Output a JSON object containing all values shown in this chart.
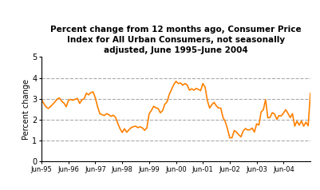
{
  "title": "Percent change from 12 months ago, Consumer Price\nIndex for All Urban Consumers, not seasonally\nadjusted, June 1995–June 2004",
  "ylabel": "Percent change",
  "line_color": "#FF8000",
  "bg_color": "#ffffff",
  "plot_bg_color": "#ffffff",
  "grid_color": "#aaaaaa",
  "ylim": [
    0,
    5
  ],
  "yticks": [
    0,
    1,
    2,
    3,
    4,
    5
  ],
  "xtick_labels": [
    "Jun-95",
    "Jun-96",
    "Jun-97",
    "Jun-98",
    "Jun-99",
    "Jun-00",
    "Jun-01",
    "Jun-02",
    "Jun-03",
    "Jun-04"
  ],
  "values": [
    2.96,
    2.77,
    2.61,
    2.54,
    2.63,
    2.74,
    2.86,
    2.99,
    3.04,
    2.88,
    2.79,
    2.62,
    2.93,
    2.97,
    2.93,
    2.98,
    3.02,
    2.78,
    2.95,
    3.01,
    3.27,
    3.19,
    3.3,
    3.33,
    3.04,
    2.62,
    2.29,
    2.24,
    2.2,
    2.29,
    2.24,
    2.16,
    2.22,
    2.11,
    1.83,
    1.57,
    1.39,
    1.57,
    1.4,
    1.52,
    1.62,
    1.67,
    1.69,
    1.62,
    1.66,
    1.61,
    1.49,
    1.61,
    2.28,
    2.44,
    2.64,
    2.57,
    2.54,
    2.33,
    2.43,
    2.74,
    2.85,
    3.21,
    3.44,
    3.68,
    3.84,
    3.73,
    3.76,
    3.65,
    3.73,
    3.66,
    3.41,
    3.48,
    3.41,
    3.5,
    3.45,
    3.39,
    3.73,
    3.55,
    2.92,
    2.56,
    2.72,
    2.83,
    2.66,
    2.56,
    2.55,
    2.1,
    1.91,
    1.55,
    1.13,
    1.14,
    1.48,
    1.41,
    1.28,
    1.18,
    1.46,
    1.58,
    1.51,
    1.52,
    1.6,
    1.41,
    1.8,
    1.74,
    2.37,
    2.48,
    2.96,
    2.09,
    2.11,
    2.34,
    2.27,
    2.02,
    2.2,
    2.18,
    2.32,
    2.48,
    2.3,
    2.1,
    2.29,
    1.69,
    1.93,
    1.74,
    1.94,
    1.69,
    1.88,
    1.71,
    3.27
  ]
}
